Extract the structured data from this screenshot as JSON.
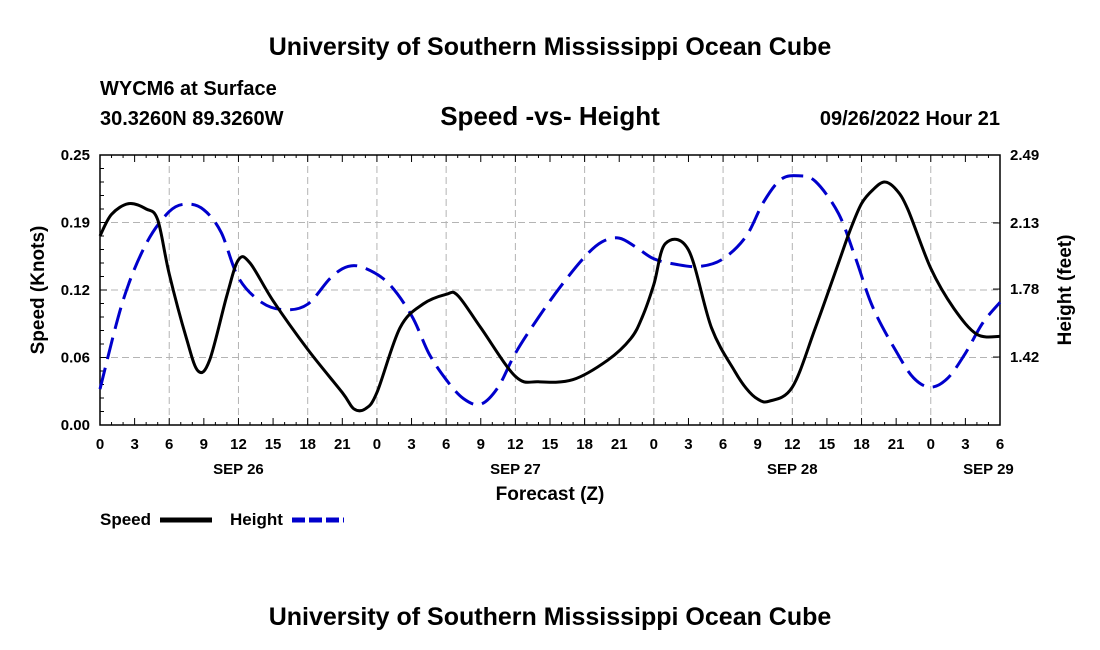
{
  "header": {
    "title": "University of Southern Mississippi Ocean Cube",
    "station": "WYCM6 at Surface",
    "location": "30.3260N  89.3260W",
    "subtitle": "Speed -vs- Height",
    "date": "09/26/2022 Hour 21"
  },
  "footer": {
    "title": "University of Southern Mississippi Ocean Cube"
  },
  "colors": {
    "speed": "#000000",
    "height": "#0000cc",
    "grid": "#b4b4b4"
  },
  "chart_data": {
    "type": "line",
    "title": "Speed -vs- Height",
    "xlabel": "Forecast (Z)",
    "ylabel_left": "Speed (Knots)",
    "ylabel_right": "Height (feet)",
    "x_range_hours": [
      0,
      78
    ],
    "ylim_left": [
      0,
      0.25
    ],
    "ylim_right": [
      1.06,
      2.49
    ],
    "left_ticks": [
      "0.00",
      "0.06",
      "0.12",
      "0.19",
      "0.25"
    ],
    "right_ticks": [
      "1.42",
      "1.78",
      "2.13",
      "2.49"
    ],
    "right_tick_values": [
      1.42,
      1.78,
      2.13,
      2.49
    ],
    "x_tick_labels": [
      "0",
      "3",
      "6",
      "9",
      "12",
      "15",
      "18",
      "21",
      "0",
      "3",
      "6",
      "9",
      "12",
      "15",
      "18",
      "21",
      "0",
      "3",
      "6",
      "9",
      "12",
      "15",
      "18",
      "21",
      "0",
      "3",
      "6"
    ],
    "date_labels": [
      {
        "label": "SEP 26",
        "hour": 12
      },
      {
        "label": "SEP 27",
        "hour": 36
      },
      {
        "label": "SEP 28",
        "hour": 60
      },
      {
        "label": "SEP 29",
        "hour": 77
      }
    ],
    "grid": true,
    "legend": [
      {
        "name": "Speed",
        "style": "solid"
      },
      {
        "name": "Height",
        "style": "dashed"
      }
    ],
    "series": [
      {
        "name": "Speed",
        "axis": "left",
        "style": "solid",
        "x": [
          0,
          1,
          2.5,
          4,
          5,
          6,
          7.5,
          8.5,
          9.5,
          11,
          12,
          13,
          15,
          18,
          21,
          22,
          23,
          24,
          26,
          28,
          30,
          31,
          33,
          36,
          38,
          41,
          44,
          46,
          47,
          48,
          49,
          51,
          53,
          55,
          56,
          57,
          58,
          60,
          62,
          64,
          65,
          66,
          67,
          68,
          69,
          70,
          72,
          74,
          76,
          78
        ],
        "y": [
          0.175,
          0.195,
          0.205,
          0.2,
          0.19,
          0.14,
          0.08,
          0.05,
          0.06,
          0.12,
          0.153,
          0.15,
          0.115,
          0.07,
          0.03,
          0.015,
          0.015,
          0.03,
          0.09,
          0.112,
          0.121,
          0.12,
          0.09,
          0.045,
          0.04,
          0.042,
          0.06,
          0.08,
          0.1,
          0.13,
          0.168,
          0.162,
          0.09,
          0.05,
          0.034,
          0.024,
          0.022,
          0.035,
          0.09,
          0.15,
          0.18,
          0.205,
          0.218,
          0.225,
          0.218,
          0.2,
          0.145,
          0.108,
          0.084,
          0.082
        ]
      },
      {
        "name": "Height",
        "axis": "right",
        "style": "dashed",
        "x": [
          0,
          2,
          4,
          6,
          7.5,
          9,
          10.5,
          12,
          14,
          16,
          18,
          20,
          21.5,
          23,
          25,
          27,
          28.5,
          30,
          31.5,
          33,
          34.5,
          36,
          38,
          40,
          42,
          43.5,
          45,
          46.5,
          48,
          50,
          52,
          54,
          56,
          57.5,
          59,
          60.5,
          62,
          64,
          65.5,
          67,
          69,
          70.5,
          72,
          73.5,
          75,
          76.5,
          78
        ],
        "y": [
          1.25,
          1.72,
          2.02,
          2.19,
          2.23,
          2.2,
          2.08,
          1.84,
          1.71,
          1.67,
          1.7,
          1.84,
          1.9,
          1.89,
          1.81,
          1.64,
          1.44,
          1.3,
          1.2,
          1.17,
          1.26,
          1.44,
          1.63,
          1.8,
          1.95,
          2.03,
          2.05,
          2.0,
          1.94,
          1.91,
          1.9,
          1.94,
          2.06,
          2.24,
          2.36,
          2.38,
          2.35,
          2.18,
          1.94,
          1.68,
          1.45,
          1.31,
          1.26,
          1.31,
          1.44,
          1.6,
          1.71
        ]
      }
    ]
  }
}
